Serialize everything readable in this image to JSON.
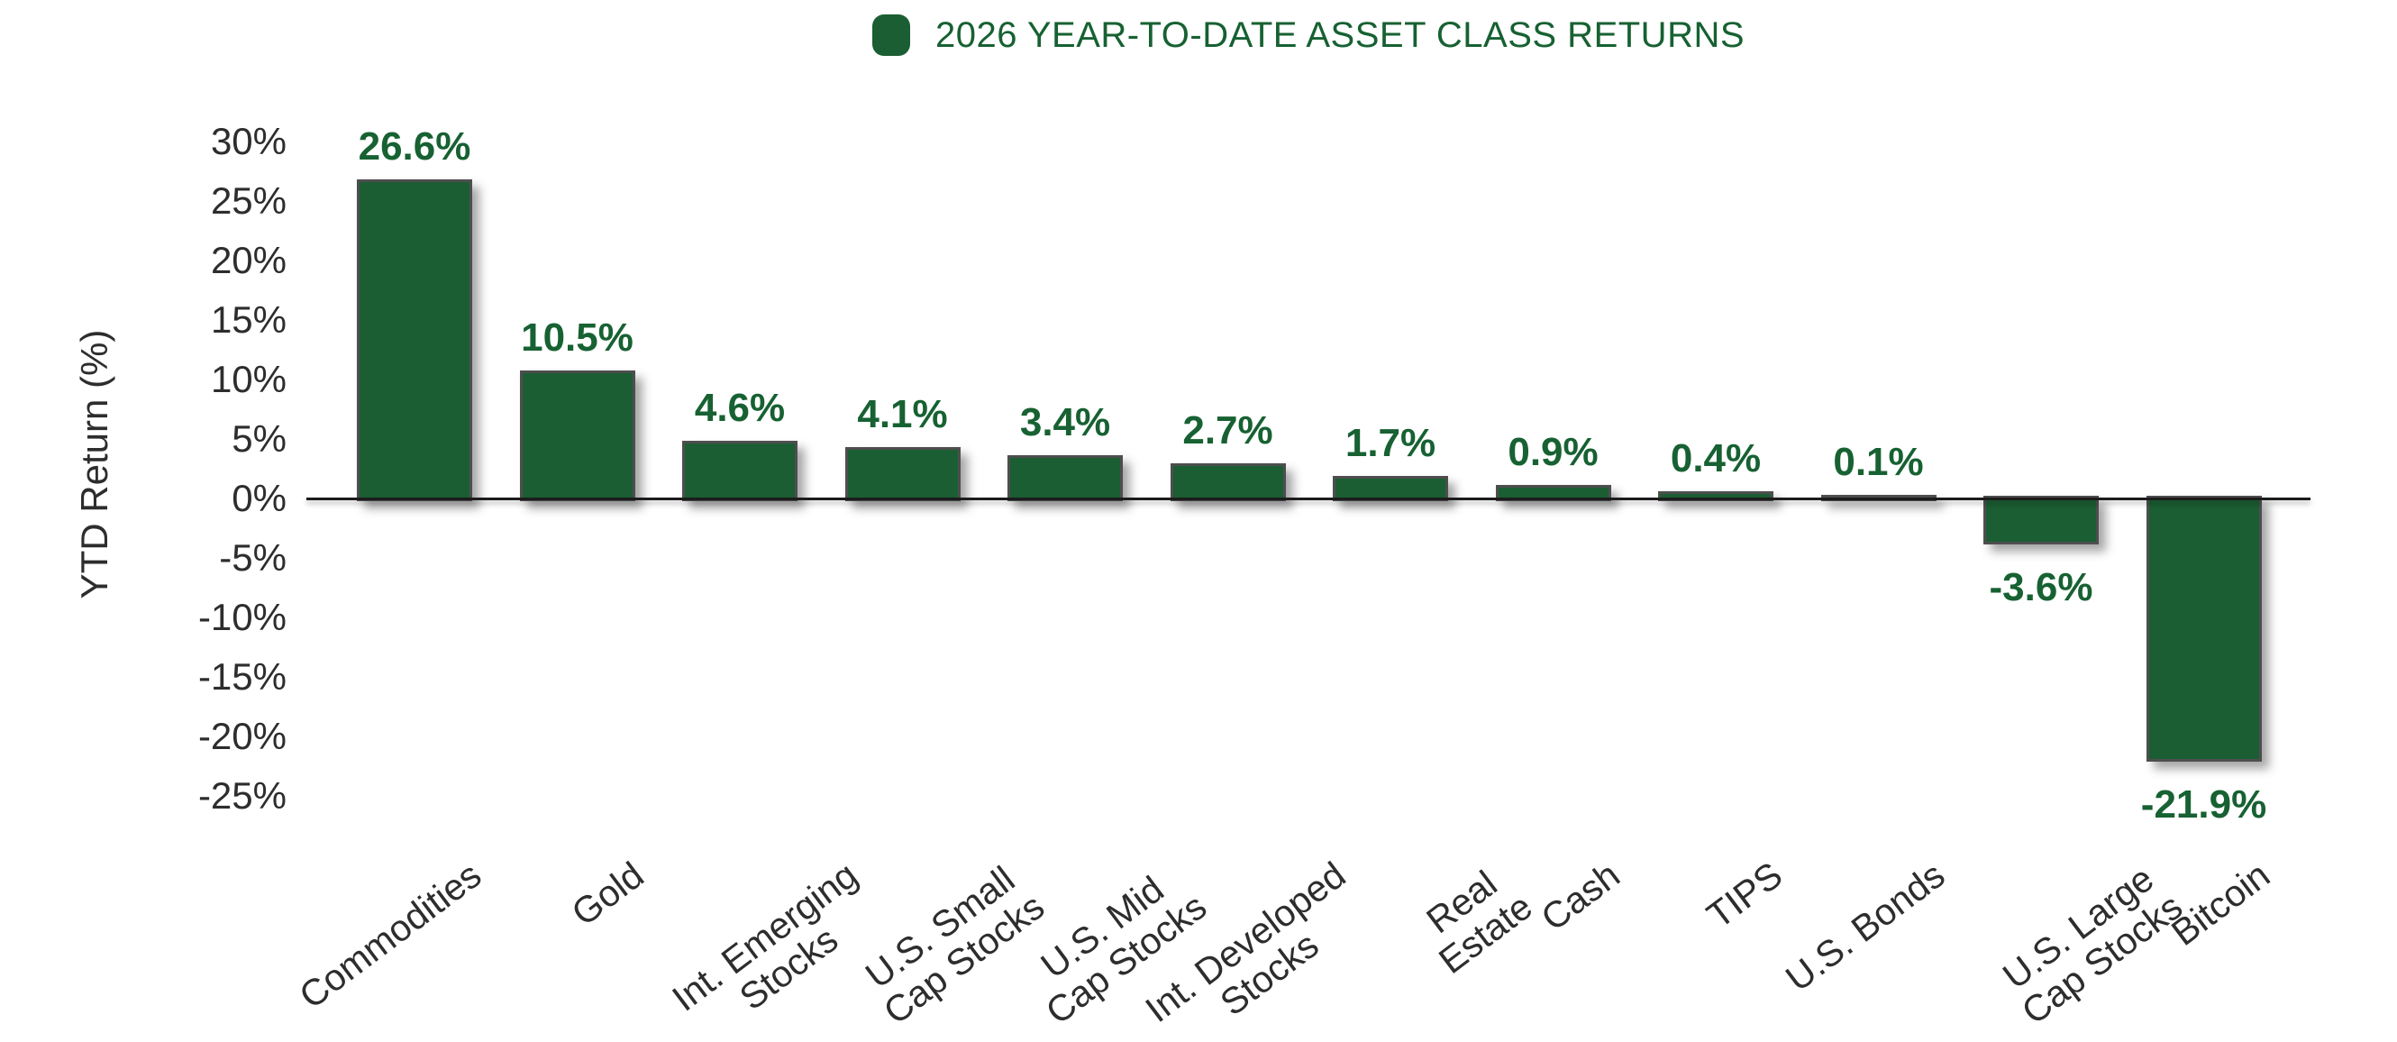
{
  "page": {
    "background": "#ffffff"
  },
  "chart_data": {
    "type": "bar",
    "legend": {
      "label": "2026 YEAR-TO-DATE ASSET CLASS RETURNS",
      "position": "top-center",
      "swatch_color": "#1b5e33"
    },
    "ylabel": "YTD Return (%)",
    "ylim": [
      -25,
      30
    ],
    "ytick_step": 5,
    "yticks": [
      {
        "v": 30,
        "label": "30%"
      },
      {
        "v": 25,
        "label": "25%"
      },
      {
        "v": 20,
        "label": "20%"
      },
      {
        "v": 15,
        "label": "15%"
      },
      {
        "v": 10,
        "label": "10%"
      },
      {
        "v": 5,
        "label": "5%"
      },
      {
        "v": 0,
        "label": "0%"
      },
      {
        "v": -5,
        "label": "-5%"
      },
      {
        "v": -10,
        "label": "-10%"
      },
      {
        "v": -15,
        "label": "-15%"
      },
      {
        "v": -20,
        "label": "-20%"
      },
      {
        "v": -25,
        "label": "-25%"
      }
    ],
    "categories": [
      "Commodities",
      "Gold",
      "Int. Emerging\nStocks",
      "U.S. Small\nCap Stocks",
      "U.S. Mid\nCap Stocks",
      "Int. Developed\nStocks",
      "Real\nEstate",
      "Cash",
      "TIPS",
      "U.S. Bonds",
      "U.S. Large\nCap Stocks",
      "Bitcoin"
    ],
    "values": [
      26.6,
      10.5,
      4.6,
      4.1,
      3.4,
      2.7,
      1.7,
      0.9,
      0.4,
      0.1,
      -3.6,
      -21.9
    ],
    "value_labels": [
      "26.6%",
      "10.5%",
      "4.6%",
      "4.1%",
      "3.4%",
      "2.7%",
      "1.7%",
      "0.9%",
      "0.4%",
      "0.1%",
      "-3.6%",
      "-21.9%"
    ],
    "grid": false,
    "colors": {
      "bar_fill": "#1b5e33",
      "bar_border": "#4e4e4e",
      "value_label": "#176132",
      "axis_text": "#2d2d2d",
      "zero_line": "#1c1c1c",
      "background": "#ffffff"
    }
  }
}
